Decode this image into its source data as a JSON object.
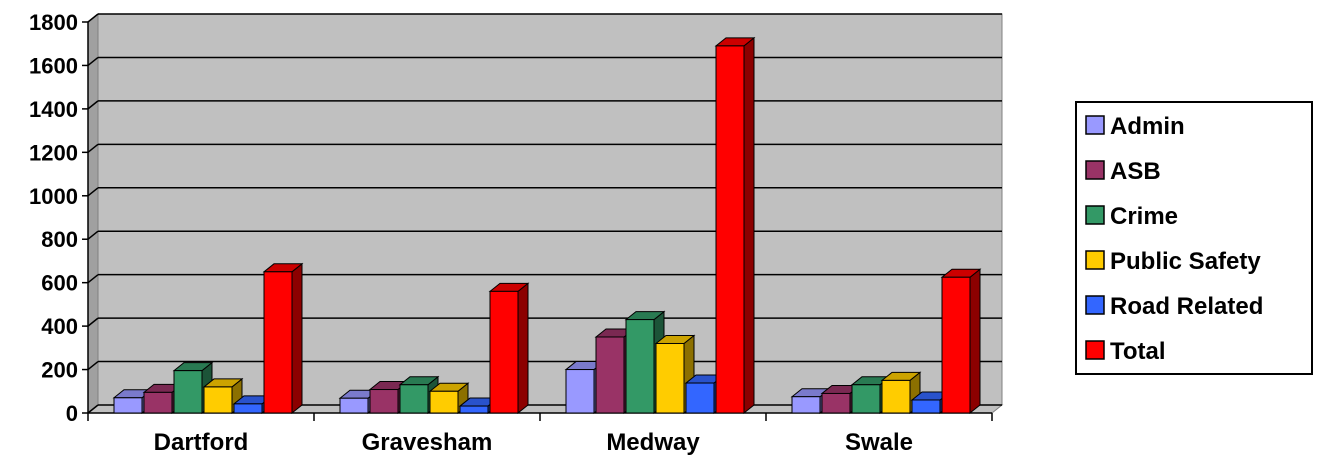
{
  "chart_data": {
    "type": "bar",
    "title": "",
    "xlabel": "",
    "ylabel": "",
    "ylim": [
      0,
      1800
    ],
    "yticks": [
      0,
      200,
      400,
      600,
      800,
      1000,
      1200,
      1400,
      1600,
      1800
    ],
    "grid": true,
    "legend_position": "right",
    "categories": [
      "Dartford",
      "Gravesham",
      "Medway",
      "Swale"
    ],
    "series": [
      {
        "name": "Admin",
        "color": "#9999ff",
        "values": [
          70,
          68,
          200,
          75
        ]
      },
      {
        "name": "ASB",
        "color": "#993366",
        "values": [
          95,
          108,
          350,
          90
        ]
      },
      {
        "name": "Crime",
        "color": "#339966",
        "values": [
          195,
          130,
          430,
          130
        ]
      },
      {
        "name": "Public Safety",
        "color": "#ffcc00",
        "values": [
          120,
          100,
          320,
          150
        ]
      },
      {
        "name": "Road Related",
        "color": "#3366ff",
        "values": [
          42,
          32,
          138,
          60
        ]
      },
      {
        "name": "Total",
        "color": "#ff0000",
        "values": [
          650,
          560,
          1690,
          625
        ]
      }
    ],
    "colors": {
      "plot_wall": "#c0c0c0",
      "floor": "#c0c0c0",
      "gridline": "#000000"
    }
  }
}
